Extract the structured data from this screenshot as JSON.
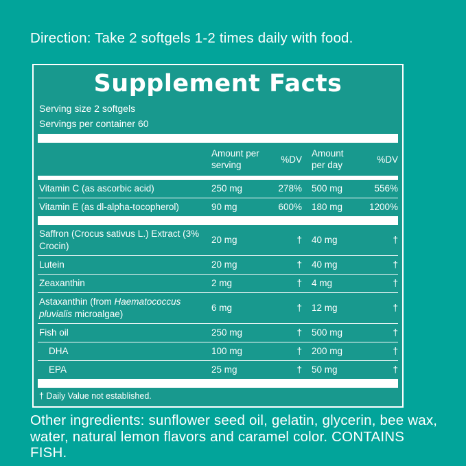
{
  "colors": {
    "background": "#02a49a",
    "panel_background": "#18998e",
    "text": "#ffffff",
    "divider": "#ffffff"
  },
  "direction": {
    "text": "Direction: Take 2 softgels 1-2 times daily with food."
  },
  "supplement_facts": {
    "title": "Supplement Facts",
    "serving_size": "Serving size 2 softgels",
    "servings_per_container": "Servings per container 60",
    "column_headers": [
      "Amount per\nserving",
      "%DV",
      "Amount\nper day",
      "%DV"
    ],
    "rows": [
      {
        "name_parts": [
          {
            "text": "Vitamin C (as ascorbic acid)"
          }
        ],
        "amount_per_serving": "250 mg",
        "dv_serving": "278%",
        "amount_per_day": "500 mg",
        "dv_day": "556%",
        "indent": false,
        "divider_after": "thin"
      },
      {
        "name_parts": [
          {
            "text": "Vitamin E (as dl-alpha-tocopherol)"
          }
        ],
        "amount_per_serving": "90 mg",
        "dv_serving": "600%",
        "amount_per_day": "180 mg",
        "dv_day": "1200%",
        "indent": false,
        "divider_after": "thick"
      },
      {
        "name_parts": [
          {
            "text": "Saffron (Crocus sativus L.) Extract (3%\nCrocin)"
          }
        ],
        "amount_per_serving": "20 mg",
        "dv_serving": "†",
        "amount_per_day": "40 mg",
        "dv_day": "†",
        "indent": false,
        "divider_after": "thin"
      },
      {
        "name_parts": [
          {
            "text": "Lutein"
          }
        ],
        "amount_per_serving": "20 mg",
        "dv_serving": "†",
        "amount_per_day": "40 mg",
        "dv_day": "†",
        "indent": false,
        "divider_after": "thin"
      },
      {
        "name_parts": [
          {
            "text": "Zeaxanthin"
          }
        ],
        "amount_per_serving": "2 mg",
        "dv_serving": "†",
        "amount_per_day": "4 mg",
        "dv_day": "†",
        "indent": false,
        "divider_after": "thin"
      },
      {
        "name_parts": [
          {
            "text": "Astaxanthin (from "
          },
          {
            "text": "Haematococcus pluvialis",
            "italic": true
          },
          {
            "text": " microalgae)"
          }
        ],
        "amount_per_serving": "6 mg",
        "dv_serving": "†",
        "amount_per_day": "12 mg",
        "dv_day": "†",
        "indent": false,
        "divider_after": "thin"
      },
      {
        "name_parts": [
          {
            "text": "Fish oil"
          }
        ],
        "amount_per_serving": "250 mg",
        "dv_serving": "†",
        "amount_per_day": "500 mg",
        "dv_day": "†",
        "indent": false,
        "divider_after": "thin"
      },
      {
        "name_parts": [
          {
            "text": "DHA"
          }
        ],
        "amount_per_serving": "100 mg",
        "dv_serving": "†",
        "amount_per_day": "200 mg",
        "dv_day": "†",
        "indent": true,
        "divider_after": "thin"
      },
      {
        "name_parts": [
          {
            "text": "EPA"
          }
        ],
        "amount_per_serving": "25 mg",
        "dv_serving": "†",
        "amount_per_day": "50 mg",
        "dv_day": "†",
        "indent": true,
        "divider_after": "thick"
      }
    ],
    "footnote": "† Daily Value not established."
  },
  "other_ingredients": {
    "text": "Other ingredients: sunflower seed oil, gelatin, glycerin, bee wax,\nwater, natural lemon flavors and caramel color. CONTAINS FISH."
  }
}
